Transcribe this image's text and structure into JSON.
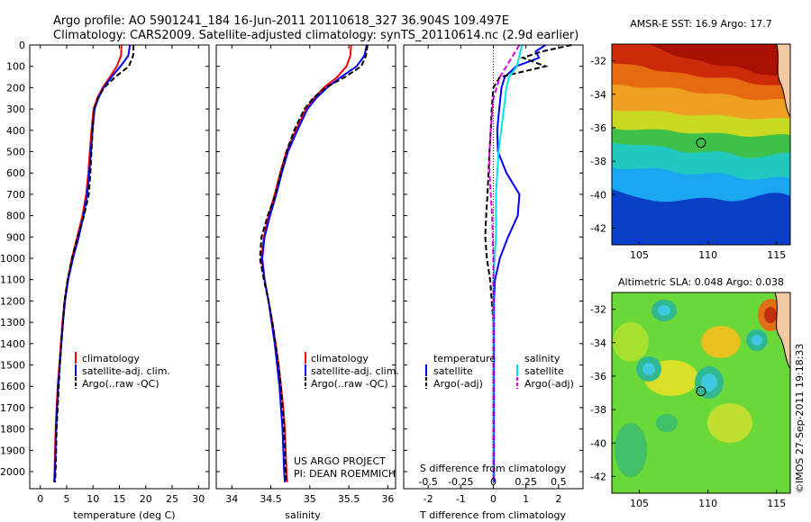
{
  "header": {
    "line1": "Argo profile: AO 5901241_184 16-Jun-2011 20110618_327 36.904S 109.497E",
    "line2": "Climatology: CARS2009. Satellite-adjusted climatology: synTS_20110614.nc (2.9d earlier)"
  },
  "side_note": "©IMOS 27-Sep-2011 19:18:33",
  "colors": {
    "climatology": "#ff0000",
    "satellite": "#0000ff",
    "argo": "#000000",
    "temp_sat": "#0000ff",
    "temp_argo": "#000000",
    "sal_sat": "#00e5e5",
    "sal_argo": "#e000e0",
    "frame": "#000000"
  },
  "chart_data": [
    {
      "id": "temperature",
      "type": "line",
      "xlabel": "temperature (deg C)",
      "ylabel": "",
      "xlim": [
        -2,
        32
      ],
      "ylim": [
        2080,
        0
      ],
      "xticks": [
        0,
        5,
        10,
        15,
        20,
        25,
        30
      ],
      "yticks": [
        0,
        100,
        200,
        300,
        400,
        500,
        600,
        700,
        800,
        900,
        1000,
        1100,
        1200,
        1300,
        1400,
        1500,
        1600,
        1700,
        1800,
        1900,
        2000
      ],
      "legend": {
        "placement": "bottom-center",
        "entries": [
          "climatology",
          "satellite-adj. clim.",
          "Argo(..raw -QC)"
        ]
      },
      "series": [
        {
          "name": "climatology",
          "style": "solid",
          "color_key": "climatology",
          "x": [
            15.4,
            15.3,
            14.5,
            13.2,
            11.8,
            10.8,
            10.1,
            9.7,
            9.4,
            9.1,
            8.7,
            8.0,
            7.0,
            6.0,
            5.2,
            4.6,
            4.2,
            3.9,
            3.6,
            3.3,
            3.1,
            2.9,
            2.8,
            2.7,
            2.6
          ],
          "y": [
            0,
            50,
            100,
            150,
            200,
            250,
            300,
            400,
            500,
            600,
            700,
            800,
            900,
            1000,
            1100,
            1200,
            1300,
            1400,
            1500,
            1600,
            1700,
            1800,
            1900,
            2000,
            2050
          ]
        },
        {
          "name": "satellite-adj. clim.",
          "style": "solid",
          "color_key": "satellite",
          "x": [
            17.0,
            16.7,
            15.2,
            13.5,
            12.0,
            11.0,
            10.3,
            9.9,
            9.6,
            9.3,
            8.9,
            8.2,
            7.3,
            6.2,
            5.3,
            4.7,
            4.3,
            4.0,
            3.7,
            3.4,
            3.2,
            3.0,
            2.9,
            2.8,
            2.7
          ],
          "y": [
            0,
            50,
            100,
            150,
            200,
            250,
            300,
            400,
            500,
            600,
            700,
            800,
            900,
            1000,
            1100,
            1200,
            1300,
            1400,
            1500,
            1600,
            1700,
            1800,
            1900,
            2000,
            2050
          ]
        },
        {
          "name": "Argo(..raw -QC)",
          "style": "dashed",
          "color_key": "argo",
          "x": [
            17.7,
            17.6,
            16.8,
            14.2,
            12.1,
            10.9,
            10.2,
            9.9,
            9.7,
            9.5,
            9.2,
            8.3,
            7.1,
            6.0,
            5.2,
            4.6,
            4.3,
            4.0,
            3.7,
            3.5,
            3.3,
            3.1,
            3.0,
            2.9,
            2.8
          ],
          "y": [
            0,
            50,
            100,
            150,
            200,
            250,
            300,
            400,
            500,
            600,
            700,
            800,
            900,
            1000,
            1100,
            1200,
            1300,
            1400,
            1500,
            1600,
            1700,
            1800,
            1900,
            2000,
            2050
          ]
        }
      ]
    },
    {
      "id": "salinity",
      "type": "line",
      "xlabel": "salinity",
      "ylabel": "",
      "xlim": [
        33.8,
        36.1
      ],
      "ylim": [
        2080,
        0
      ],
      "xticks": [
        34,
        34.5,
        35,
        35.5,
        36
      ],
      "legend": {
        "placement": "bottom-center",
        "entries": [
          "climatology",
          "satellite-adj. clim.",
          "Argo(..raw -QC)"
        ]
      },
      "annotation": [
        "US ARGO PROJECT",
        "PI: DEAN ROEMMICH"
      ],
      "series": [
        {
          "name": "climatology",
          "style": "solid",
          "color_key": "climatology",
          "x": [
            35.53,
            35.52,
            35.47,
            35.35,
            35.18,
            35.05,
            34.95,
            34.82,
            34.7,
            34.62,
            34.55,
            34.47,
            34.41,
            34.38,
            34.42,
            34.47,
            34.52,
            34.56,
            34.6,
            34.63,
            34.66,
            34.68,
            34.69,
            34.7,
            34.71
          ],
          "y": [
            0,
            50,
            100,
            150,
            200,
            250,
            300,
            400,
            500,
            600,
            700,
            800,
            900,
            1000,
            1100,
            1200,
            1300,
            1400,
            1500,
            1600,
            1700,
            1800,
            1900,
            2000,
            2050
          ]
        },
        {
          "name": "satellite-adj. clim.",
          "style": "solid",
          "color_key": "satellite",
          "x": [
            35.73,
            35.7,
            35.6,
            35.4,
            35.22,
            35.08,
            34.97,
            34.84,
            34.72,
            34.64,
            34.57,
            34.49,
            34.42,
            34.39,
            34.42,
            34.47,
            34.51,
            34.55,
            34.58,
            34.61,
            34.63,
            34.65,
            34.66,
            34.67,
            34.68
          ],
          "y": [
            0,
            50,
            100,
            150,
            200,
            250,
            300,
            400,
            500,
            600,
            700,
            800,
            900,
            1000,
            1100,
            1200,
            1300,
            1400,
            1500,
            1600,
            1700,
            1800,
            1900,
            2000,
            2050
          ]
        },
        {
          "name": "Argo(..raw -QC)",
          "style": "dashed",
          "color_key": "argo",
          "x": [
            35.74,
            35.72,
            35.66,
            35.45,
            35.2,
            35.04,
            34.93,
            34.8,
            34.7,
            34.63,
            34.56,
            34.46,
            34.38,
            34.36,
            34.41,
            34.47,
            34.52,
            34.56,
            34.6,
            34.63,
            34.65,
            34.67,
            34.68,
            34.69,
            34.7
          ],
          "y": [
            0,
            50,
            100,
            150,
            200,
            250,
            300,
            400,
            500,
            600,
            700,
            800,
            900,
            1000,
            1100,
            1200,
            1300,
            1400,
            1500,
            1600,
            1700,
            1800,
            1900,
            2000,
            2050
          ]
        }
      ]
    },
    {
      "id": "difference",
      "type": "line",
      "xlabel": "T difference from climatology",
      "xlabel2": "S difference from climatology",
      "xlim": [
        -2.75,
        2.75
      ],
      "x2lim": [
        -0.6875,
        0.6875
      ],
      "ylim": [
        2080,
        0
      ],
      "xticks": [
        -2,
        -1,
        0,
        1,
        2
      ],
      "x2ticks": [
        -0.5,
        -0.25,
        0,
        0.25,
        0.5
      ],
      "legend": {
        "placement": "bottom",
        "groups": [
          {
            "title": "temperature",
            "entries": [
              "satellite",
              "Argo(-adj)"
            ]
          },
          {
            "title": "salinity",
            "entries": [
              "satellite",
              "Argo(-adj)"
            ]
          }
        ]
      },
      "series": [
        {
          "name": "temperature satellite",
          "style": "solid",
          "color_key": "temp_sat",
          "x": [
            1.6,
            1.3,
            1.4,
            0.7,
            0.35,
            0.25,
            0.18,
            0.12,
            0.14,
            0.4,
            0.8,
            0.75,
            0.45,
            0.2,
            0.05,
            0.02,
            0.02,
            0.02,
            0.02,
            0.02,
            0.02,
            0.02,
            0.02
          ],
          "y": [
            0,
            30,
            60,
            100,
            150,
            200,
            300,
            400,
            500,
            600,
            700,
            800,
            900,
            1000,
            1100,
            1200,
            1300,
            1400,
            1500,
            1600,
            1700,
            1800,
            2050
          ]
        },
        {
          "name": "temperature Argo(-adj)",
          "style": "dashed",
          "color_key": "temp_argo",
          "x": [
            2.4,
            1.5,
            0.9,
            1.6,
            0.2,
            0.0,
            -0.05,
            -0.08,
            -0.12,
            -0.15,
            -0.18,
            -0.22,
            -0.25,
            -0.2,
            -0.1,
            -0.05,
            0.0,
            0.0,
            0.0,
            0.0,
            0.0,
            0.0
          ],
          "y": [
            0,
            30,
            60,
            100,
            150,
            200,
            300,
            400,
            500,
            600,
            700,
            800,
            900,
            1000,
            1100,
            1200,
            1300,
            1400,
            1500,
            1600,
            1700,
            2050
          ]
        },
        {
          "name": "salinity satellite",
          "style": "solid",
          "color_key": "sal_sat",
          "x": [
            0.22,
            0.2,
            0.18,
            0.12,
            0.1,
            0.08,
            0.06,
            0.04,
            0.03,
            0.02,
            0.02,
            0.02,
            0.01,
            0.0,
            0.0,
            0.0,
            0.0,
            0.0,
            0.0
          ],
          "y": [
            0,
            50,
            100,
            150,
            200,
            300,
            400,
            500,
            600,
            700,
            800,
            900,
            1000,
            1100,
            1200,
            1300,
            1400,
            1600,
            2050
          ]
        },
        {
          "name": "salinity Argo(-adj)",
          "style": "dashed",
          "color_key": "sal_argo",
          "x": [
            0.2,
            0.15,
            0.05,
            0.0,
            -0.02,
            -0.03,
            -0.03,
            -0.02,
            -0.01,
            0.0,
            0.0,
            0.0,
            0.0
          ],
          "y": [
            0,
            50,
            150,
            250,
            400,
            500,
            600,
            700,
            800,
            1000,
            1200,
            1500,
            2050
          ]
        }
      ]
    },
    {
      "id": "sst_map",
      "type": "heatmap",
      "title": "AMSR-E SST: 16.9 Argo: 17.7",
      "xlim": [
        103,
        116
      ],
      "ylim": [
        -43,
        -31
      ],
      "xticks": [
        105,
        110,
        115
      ],
      "yticks": [
        -32,
        -34,
        -36,
        -38,
        -40,
        -42
      ],
      "marker": {
        "lon": 109.497,
        "lat": -36.904
      }
    },
    {
      "id": "sla_map",
      "type": "heatmap",
      "title": "Altimetric SLA: 0.048 Argo: 0.038",
      "xlim": [
        103,
        116
      ],
      "ylim": [
        -43,
        -31
      ],
      "xticks": [
        105,
        110,
        115
      ],
      "yticks": [
        -32,
        -34,
        -36,
        -38,
        -40,
        -42
      ],
      "marker": {
        "lon": 109.497,
        "lat": -36.904
      }
    }
  ]
}
